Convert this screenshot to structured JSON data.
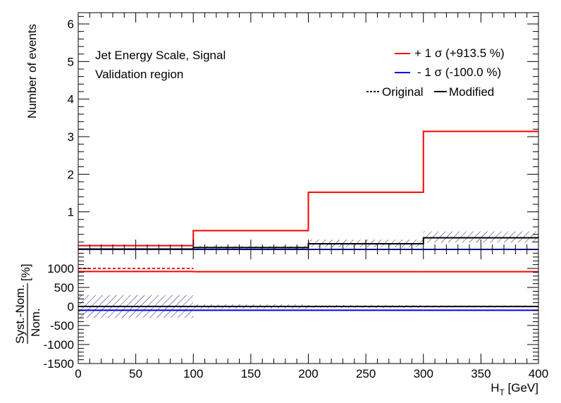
{
  "chart_data": {
    "type": "line",
    "annotations": {
      "line1": "Jet Energy Scale, Signal",
      "line2": "Validation region"
    },
    "legend": {
      "placement": "top-right",
      "up_label": "+ 1 σ (+913.5 %)",
      "down_label": "- 1 σ (-100.0 %)",
      "original_label": "Original",
      "modified_label": "Modified"
    },
    "bin_edges": [
      0,
      100,
      200,
      300,
      400
    ],
    "xlim": [
      0,
      400
    ],
    "xticks": [
      0,
      50,
      100,
      150,
      200,
      250,
      300,
      350,
      400
    ],
    "xlabel_main": "H",
    "xlabel_sub": "T",
    "xlabel_unit": " [GeV]",
    "top_panel": {
      "ylabel": "Number of events",
      "ylim": [
        0,
        6.3
      ],
      "yticks": [
        1,
        2,
        3,
        4,
        5,
        6
      ],
      "series": [
        {
          "name": "+ 1 σ (+913.5 %)",
          "color": "#ff0000",
          "style": "solid",
          "values": [
            0.1,
            0.5,
            1.52,
            3.14
          ]
        },
        {
          "name": "- 1 σ (-100.0 %)",
          "color": "#0000ff",
          "style": "solid",
          "values": [
            0,
            0,
            0,
            0
          ]
        },
        {
          "name": "Nominal",
          "color": "#000000",
          "style": "solid",
          "values": [
            0.01,
            0.05,
            0.15,
            0.31
          ]
        }
      ],
      "stat_band": {
        "low": [
          0.0,
          0.0,
          0.06,
          0.18
        ],
        "high": [
          0.03,
          0.09,
          0.26,
          0.48
        ]
      }
    },
    "bottom_panel": {
      "ylabel_numerator": "Syst.-Nom.",
      "ylabel_denominator": "Nom.",
      "ylabel_unit": "[%]",
      "ylim": [
        -1500,
        1500
      ],
      "yticks": [
        -1500,
        -1000,
        -500,
        0,
        500,
        1000
      ],
      "series": [
        {
          "name": "+1σ original",
          "color": "#ff0000",
          "style": "dashed",
          "values": [
            1000,
            null,
            null,
            null
          ]
        },
        {
          "name": "+1σ modified",
          "color": "#ff0000",
          "style": "solid",
          "values": [
            920,
            913.5,
            913.5,
            913.5
          ]
        },
        {
          "name": "-1σ modified",
          "color": "#0000ff",
          "style": "solid",
          "values": [
            -100,
            -100,
            -100,
            -100
          ]
        },
        {
          "name": "nominal",
          "color": "#000000",
          "style": "solid",
          "values": [
            0,
            0,
            0,
            0
          ]
        }
      ],
      "stat_band": {
        "low": [
          -300,
          -60,
          -40,
          -30
        ],
        "high": [
          300,
          60,
          40,
          30
        ]
      }
    }
  }
}
